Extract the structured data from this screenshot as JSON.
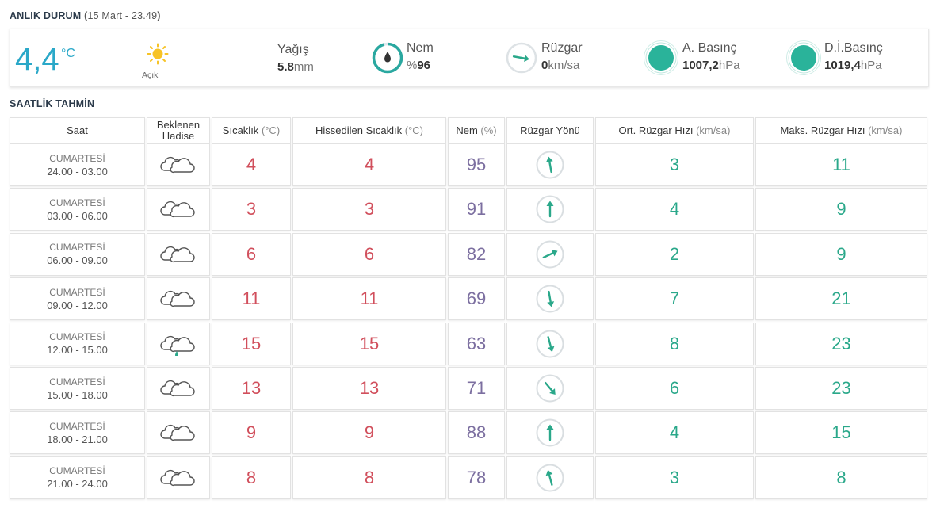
{
  "current": {
    "section_title": "ANLIK DURUM",
    "section_subtitle": "15 Mart - 23.49",
    "temp": "4,4",
    "temp_unit": "°C",
    "condition_icon": "sun-icon",
    "condition_label": "Açık",
    "precip_label": "Yağış",
    "precip_value": "5.8",
    "precip_unit": "mm",
    "humidity_label": "Nem",
    "humidity_value": "96",
    "humidity_prefix": "%",
    "humidity_percent": 96,
    "wind_label": "Rüzgar",
    "wind_value": "0",
    "wind_unit": "km/sa",
    "pressure_label": "A. Basınç",
    "pressure_value": "1007,2",
    "pressure_unit": "hPa",
    "sea_pressure_label": "D.İ.Basınç",
    "sea_pressure_value": "1019,4",
    "sea_pressure_unit": "hPa"
  },
  "hourly": {
    "section_title": "SAATLİK TAHMİN",
    "headers": {
      "time": "Saat",
      "event": "Beklenen Hadise",
      "temp": "Sıcaklık",
      "temp_unit": "(°C)",
      "feels": "Hissedilen Sıcaklık",
      "feels_unit": "(°C)",
      "hum": "Nem",
      "hum_unit": "(%)",
      "wdir": "Rüzgar Yönü",
      "wavg": "Ort. Rüzgar Hızı",
      "wavg_unit": "(km/sa)",
      "wmax": "Maks. Rüzgar Hızı",
      "wmax_unit": "(km/sa)"
    },
    "rows": [
      {
        "day": "CUMARTESİ",
        "hours": "24.00 - 03.00",
        "icon": "cloud-icon",
        "temp": "4",
        "feels": "4",
        "hum": "95",
        "wind_dir_deg": 350,
        "wavg": "3",
        "wmax": "11"
      },
      {
        "day": "CUMARTESİ",
        "hours": "03.00 - 06.00",
        "icon": "cloud-icon",
        "temp": "3",
        "feels": "3",
        "hum": "91",
        "wind_dir_deg": 0,
        "wavg": "4",
        "wmax": "9"
      },
      {
        "day": "CUMARTESİ",
        "hours": "06.00 - 09.00",
        "icon": "cloud-icon",
        "temp": "6",
        "feels": "6",
        "hum": "82",
        "wind_dir_deg": 65,
        "wavg": "2",
        "wmax": "9"
      },
      {
        "day": "CUMARTESİ",
        "hours": "09.00 - 12.00",
        "icon": "cloud-icon",
        "temp": "11",
        "feels": "11",
        "hum": "69",
        "wind_dir_deg": 170,
        "wavg": "7",
        "wmax": "21"
      },
      {
        "day": "CUMARTESİ",
        "hours": "12.00 - 15.00",
        "icon": "cloud-rain-icon",
        "temp": "15",
        "feels": "15",
        "hum": "63",
        "wind_dir_deg": 165,
        "wavg": "8",
        "wmax": "23"
      },
      {
        "day": "CUMARTESİ",
        "hours": "15.00 - 18.00",
        "icon": "cloud-icon",
        "temp": "13",
        "feels": "13",
        "hum": "71",
        "wind_dir_deg": 140,
        "wavg": "6",
        "wmax": "23"
      },
      {
        "day": "CUMARTESİ",
        "hours": "18.00 - 21.00",
        "icon": "cloud-icon",
        "temp": "9",
        "feels": "9",
        "hum": "88",
        "wind_dir_deg": 0,
        "wavg": "4",
        "wmax": "15"
      },
      {
        "day": "CUMARTESİ",
        "hours": "21.00 - 24.00",
        "icon": "cloud-icon",
        "temp": "8",
        "feels": "8",
        "hum": "78",
        "wind_dir_deg": 345,
        "wavg": "3",
        "wmax": "8"
      }
    ]
  },
  "colors": {
    "accent_blue": "#2aa8c8",
    "temp_red": "#d14f5c",
    "humidity_purple": "#7c6fa0",
    "wind_teal": "#2aa88a"
  }
}
